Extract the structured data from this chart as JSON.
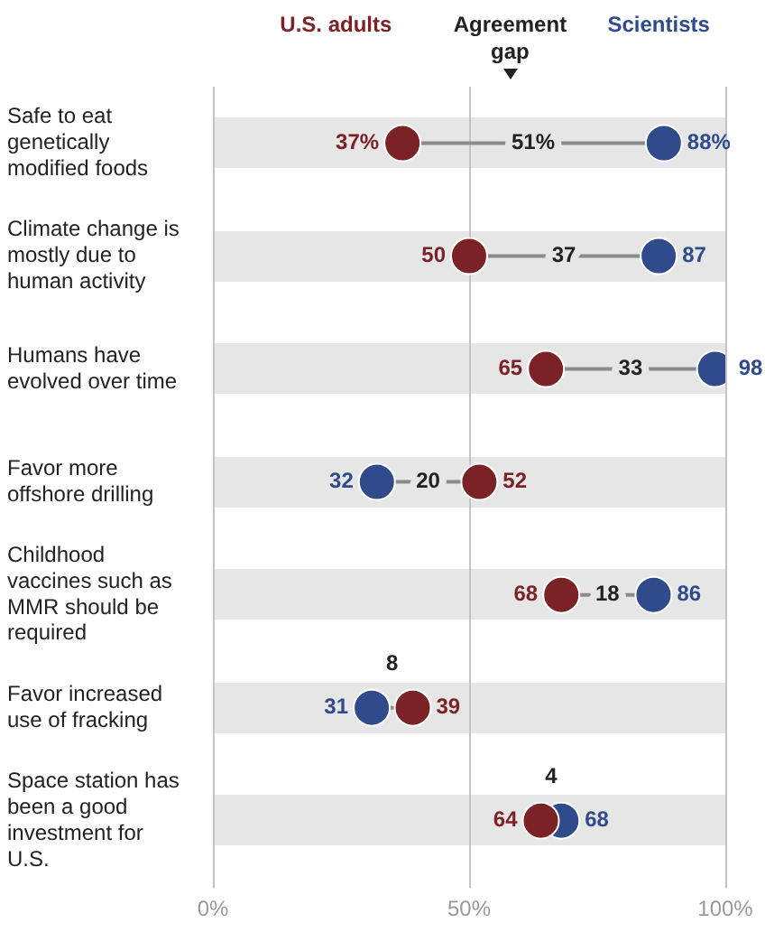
{
  "chart_data": {
    "type": "scatter",
    "orientation": "horizontal",
    "legend": "top",
    "grid": "x",
    "marker": "circle",
    "categories": [
      "Safe to eat genetically modified foods",
      "Climate change is mostly due to human activity",
      "Humans have evolved over time",
      "Favor more offshore drilling",
      "Childhood vaccines such as MMR should be required",
      "Favor increased use of fracking",
      "Space station has been a good investment for U.S."
    ],
    "series": [
      {
        "name": "U.S. adults",
        "color": "#7b2226",
        "values": [
          37,
          50,
          65,
          52,
          68,
          39,
          64
        ],
        "value_labels": [
          "37%",
          "50",
          "65",
          "52",
          "68",
          "39",
          "64"
        ]
      },
      {
        "name": "Scientists",
        "color": "#2f4b8c",
        "values": [
          88,
          87,
          98,
          32,
          86,
          31,
          68
        ],
        "value_labels": [
          "88%",
          "87",
          "98",
          "32",
          "86",
          "31",
          "68"
        ]
      }
    ],
    "xlim": [
      0,
      100
    ],
    "xticks": [
      {
        "value": 0,
        "label": "0%"
      },
      {
        "value": 50,
        "label": "50%"
      },
      {
        "value": 100,
        "label": "100%"
      }
    ],
    "legend_title": "Agreement gap",
    "annotations": [
      "51%",
      "37",
      "33",
      "20",
      "18",
      "8",
      "4"
    ]
  }
}
